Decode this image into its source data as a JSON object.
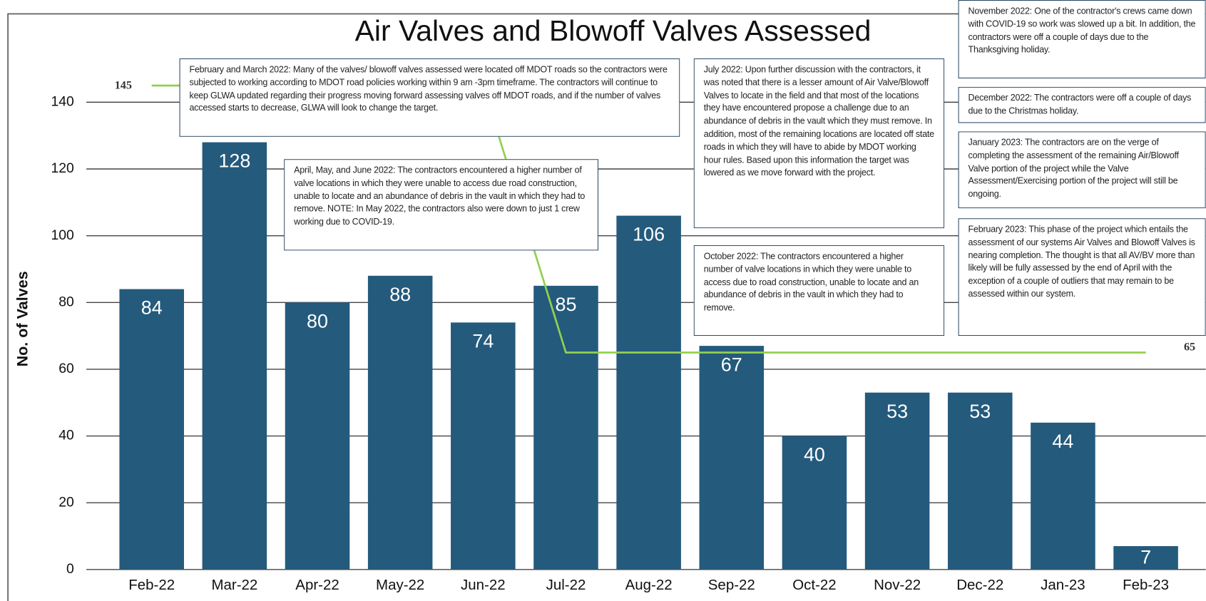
{
  "chart_data": {
    "type": "bar",
    "title": "Air Valves and Blowoff Valves Assessed",
    "y_label": "No. of Valves",
    "categories": [
      "Feb-22",
      "Mar-22",
      "Apr-22",
      "May-22",
      "Jun-22",
      "Jul-22",
      "Aug-22",
      "Sep-22",
      "Oct-22",
      "Nov-22",
      "Dec-22",
      "Jan-23",
      "Feb-23"
    ],
    "series": [
      {
        "type": "bar",
        "color": "#245a7c",
        "values": [
          84,
          128,
          80,
          88,
          74,
          85,
          106,
          67,
          40,
          53,
          53,
          44,
          7
        ]
      },
      {
        "type": "line",
        "color": "#92d050",
        "values": [
          145,
          145,
          145,
          145,
          145,
          65,
          65,
          65,
          65,
          65,
          65,
          65,
          65
        ]
      }
    ],
    "ylim": [
      0,
      160
    ],
    "yticks": [
      0,
      20,
      40,
      60,
      80,
      100,
      120,
      140
    ],
    "grid": true,
    "annotations": [
      "February and March 2022:  Many of the valves/ blowoff valves assessed were located off MDOT roads so the contractors were subjected to working according to MDOT road policies working within 9 am -3pm timeframe. The contractors will continue to keep GLWA updated  regarding their progress moving forward assessing valves off MDOT roads, and if the number of valves accessed starts to decrease,  GLWA will look to change  the target.",
      "April, May, and June 2022:  The contractors encountered  a higher  number of valve locations in which they  were unable to access due road construction,  unable to locate and an abundance  of debris in the vault in which they had to remove. NOTE: In May 2022, the contractors also were down to just 1 crew working due to COVID-19.",
      "July 2022:  Upon further discussion with the contractors,  it was noted that there is a lesser amount of Air Valve/Blowoff  Valves to locate in the field and  that most of the locations  they have encountered  propose a challenge due to an abundance  of debris in the vault which they must remove.  In addition,  most of the remaining locations are located  off state roads in which they  will have to abide by MDOT working hour rules. Based upon this information the target was lowered as we move forward with the project.",
      "October 2022:  The contractors encountered  a higher  number of valve locations in which they were unable to access due to road construction,  unable to locate and an abundance  of debris in the vault in which they had to remove.",
      "November 2022:  One of the contractor's crews came down with COVID-19 so work was slowed up a bit. In addition, the contractors were off a couple of days due to the Thanksgiving holiday.",
      "December 2022:  The contractors were off a couple of days due to the Christmas holiday.",
      "January 2023:  The contractors are on the verge of completing the assessment of the remaining Air/Blowoff Valve portion of the project while the Valve Assessment/Exercising portion of the project will still be ongoing.",
      "February 2023:  This phase of the project which entails the assessment of our systems Air Valves and Blowoff Valves is nearing completion. The thought  is that all AV/BV more than likely will be fully assessed by the end of April with the exception  of a couple of outliers that may remain to be assessed within our system."
    ]
  }
}
